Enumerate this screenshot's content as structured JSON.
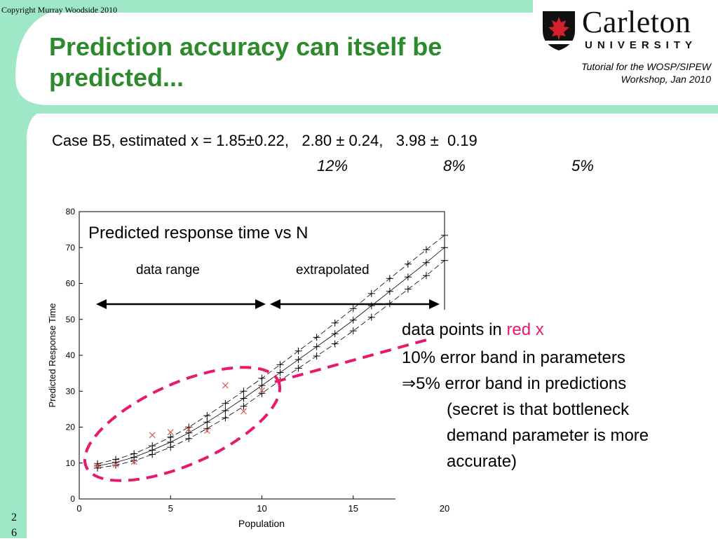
{
  "copyright": "Copyright Murray Woodside 2010",
  "title": "Prediction accuracy can itself be predicted...",
  "logo": {
    "name": "Carleton",
    "sub": "UNIVERSITY",
    "icon": "carleton-shield-icon"
  },
  "tutorial": {
    "line1": "Tutorial for the WOSP/SIPEW",
    "line2": "Workshop, Jan 2010"
  },
  "case_line": "Case B5, estimated x = 1.85±0.22,   2.80 ± 0.24,   3.98 ±  0.19",
  "percentages": [
    "12%",
    "8%",
    "5%"
  ],
  "notes": {
    "line1_prefix": "data points in ",
    "line1_red": "red x",
    "line2": "10% error band in parameters",
    "line3": "⇒5% error band in predictions",
    "line4": "(secret is that bottleneck",
    "line5": "demand parameter is more",
    "line6": "accurate)"
  },
  "slide_number": {
    "line1": "2",
    "line2": "6"
  },
  "colors": {
    "title": "#2c8a2c",
    "band": "#9ee8c8",
    "highlight": "#e8186c",
    "data_points": "#e05555"
  },
  "chart_data": {
    "type": "line",
    "title": "Predicted response time vs N",
    "xlabel": "Population",
    "ylabel": "Predicted Response Time",
    "xlim": [
      0,
      20
    ],
    "ylim": [
      0,
      80
    ],
    "xticks": [
      0,
      5,
      10,
      15,
      20
    ],
    "yticks": [
      0,
      10,
      20,
      30,
      40,
      50,
      60,
      70,
      80
    ],
    "annotations": {
      "data_range": "data range",
      "extrapolated": "extrapolated"
    },
    "x": [
      1,
      2,
      3,
      4,
      5,
      6,
      7,
      8,
      9,
      10,
      11,
      12,
      13,
      14,
      15,
      16,
      17,
      18,
      19,
      20
    ],
    "series": [
      {
        "name": "",
        "style": "solid",
        "values": [
          9.2,
          10.2,
          11.6,
          13.6,
          15.8,
          18.4,
          21.4,
          24.6,
          28.0,
          31.6,
          35.2,
          38.8,
          42.4,
          46.0,
          49.8,
          53.8,
          57.8,
          61.8,
          65.8,
          70.0
        ]
      },
      {
        "name": "",
        "style": "dashed",
        "values": [
          9.8,
          11.0,
          12.6,
          14.8,
          17.2,
          20.0,
          23.2,
          26.6,
          30.0,
          33.6,
          37.4,
          41.2,
          45.0,
          49.0,
          53.0,
          57.2,
          61.4,
          65.4,
          69.4,
          73.4
        ]
      },
      {
        "name": "",
        "style": "dashed",
        "values": [
          8.6,
          9.4,
          10.6,
          12.4,
          14.4,
          16.8,
          19.6,
          22.6,
          25.8,
          29.4,
          33.0,
          36.4,
          39.8,
          43.2,
          46.8,
          50.6,
          54.4,
          58.4,
          62.2,
          66.4
        ]
      }
    ],
    "data_points": {
      "x": [
        1,
        2,
        3,
        4,
        5,
        6,
        7,
        8,
        9,
        10
      ],
      "y": [
        9.2,
        9.6,
        10.4,
        17.8,
        18.6,
        19.4,
        19.0,
        31.6,
        24.4,
        30.2
      ]
    }
  }
}
